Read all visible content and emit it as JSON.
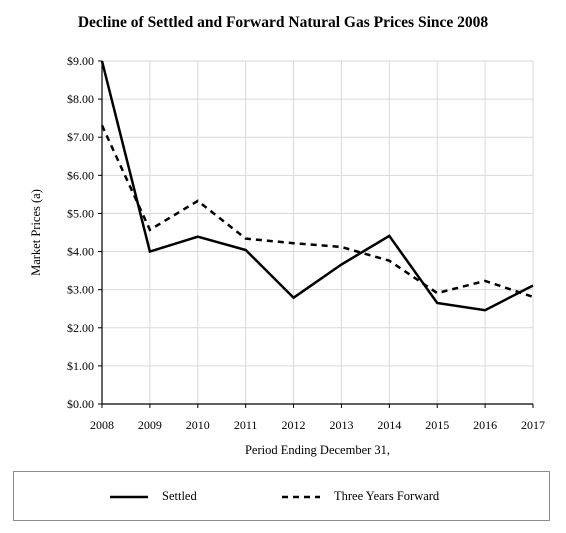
{
  "chart_data": {
    "type": "line",
    "title": "Decline of Settled and Forward Natural Gas Prices Since 2008",
    "xlabel": "Period Ending December 31,",
    "ylabel": "Market Prices (a)",
    "categories": [
      "2008",
      "2009",
      "2010",
      "2011",
      "2012",
      "2013",
      "2014",
      "2015",
      "2016",
      "2017"
    ],
    "ylim": [
      0,
      9
    ],
    "yticks": [
      "$0.00",
      "$1.00",
      "$2.00",
      "$3.00",
      "$4.00",
      "$5.00",
      "$6.00",
      "$7.00",
      "$8.00",
      "$9.00"
    ],
    "grid": true,
    "legend_position": "bottom",
    "series": [
      {
        "name": "Settled",
        "style": "solid",
        "color": "#000000",
        "values": [
          9.0,
          4.0,
          4.39,
          4.04,
          2.79,
          3.66,
          4.41,
          2.65,
          2.46,
          3.11
        ]
      },
      {
        "name": "Three Years Forward",
        "style": "dashed",
        "color": "#000000",
        "values": [
          7.31,
          4.57,
          5.33,
          4.34,
          4.22,
          4.12,
          3.76,
          2.91,
          3.23,
          2.81
        ]
      }
    ]
  }
}
